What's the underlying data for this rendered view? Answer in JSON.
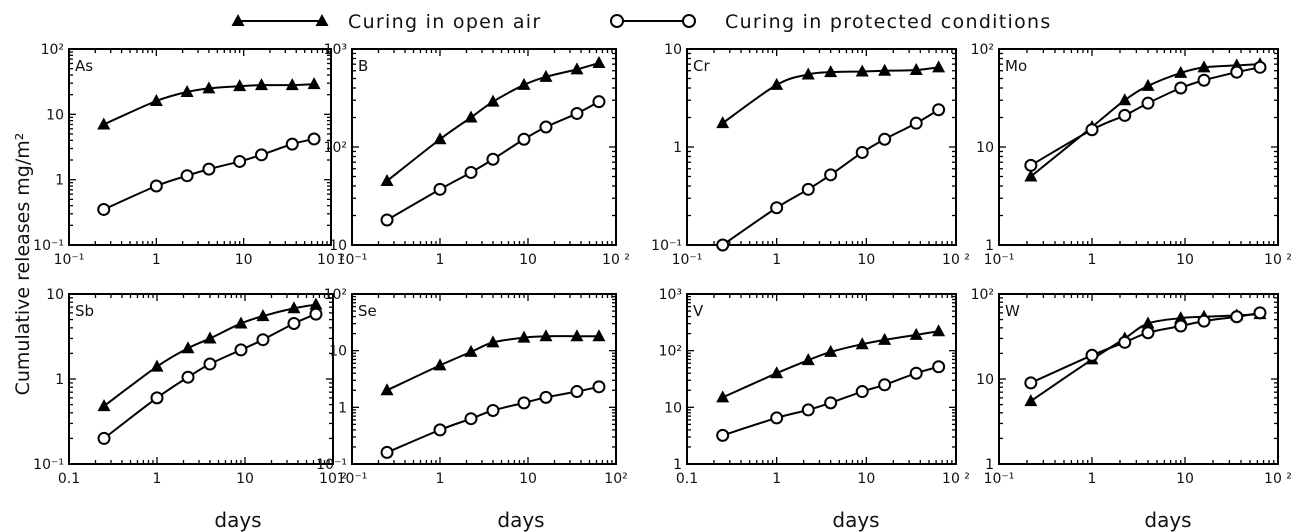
{
  "legend": {
    "open_air": "Curing in open air",
    "protected": "Curing in protected conditions"
  },
  "ylabel": "Cumulative releases mg/m²",
  "xlabel": "days",
  "chart_data": [
    {
      "type": "line",
      "panel": "As",
      "xscale": "log",
      "yscale": "log",
      "xlim": [
        0.1,
        100
      ],
      "ylim": [
        0.1,
        100
      ],
      "xtick_labels": [
        "10⁻¹",
        "1",
        "10",
        "10 ²"
      ],
      "ytick_labels": [
        "10⁻¹",
        "1",
        "10",
        "10²"
      ],
      "x": [
        0.25,
        1,
        2.25,
        4,
        9,
        16,
        36,
        64
      ],
      "series": [
        {
          "name": "Curing in open air",
          "marker": "triangle",
          "values": [
            7,
            16,
            22,
            25,
            27,
            28,
            28,
            29
          ]
        },
        {
          "name": "Curing in protected conditions",
          "marker": "circle",
          "values": [
            0.35,
            0.8,
            1.15,
            1.45,
            1.9,
            2.4,
            3.5,
            4.2
          ]
        }
      ]
    },
    {
      "type": "line",
      "panel": "B",
      "xscale": "log",
      "yscale": "log",
      "xlim": [
        0.1,
        100
      ],
      "ylim": [
        10,
        1000
      ],
      "xtick_labels": [
        "10⁻¹",
        "1",
        "10",
        "10 ²"
      ],
      "ytick_labels": [
        "10",
        "10²",
        "10³"
      ],
      "x": [
        0.25,
        1,
        2.25,
        4,
        9,
        16,
        36,
        64
      ],
      "series": [
        {
          "name": "Curing in open air",
          "marker": "triangle",
          "values": [
            45,
            120,
            200,
            290,
            430,
            520,
            620,
            720
          ]
        },
        {
          "name": "Curing in protected conditions",
          "marker": "circle",
          "values": [
            18,
            37,
            55,
            75,
            120,
            160,
            220,
            290
          ]
        }
      ]
    },
    {
      "type": "line",
      "panel": "Cr",
      "xscale": "log",
      "yscale": "log",
      "xlim": [
        0.1,
        100
      ],
      "ylim": [
        0.1,
        10
      ],
      "xtick_labels": [
        "10⁻¹",
        "1",
        "10",
        "10 ²"
      ],
      "ytick_labels": [
        "10⁻¹",
        "1",
        "10"
      ],
      "x": [
        0.25,
        1,
        2.25,
        4,
        9,
        16,
        36,
        64
      ],
      "series": [
        {
          "name": "Curing in open air",
          "marker": "triangle",
          "values": [
            1.75,
            4.3,
            5.5,
            5.8,
            5.9,
            6.0,
            6.1,
            6.5
          ]
        },
        {
          "name": "Curing in protected conditions",
          "marker": "circle",
          "values": [
            0.1,
            0.24,
            0.37,
            0.52,
            0.88,
            1.2,
            1.75,
            2.4
          ]
        }
      ]
    },
    {
      "type": "line",
      "panel": "Mo",
      "xscale": "log",
      "yscale": "log",
      "xlim": [
        0.1,
        100
      ],
      "ylim": [
        1,
        100
      ],
      "xtick_labels": [
        "10⁻¹",
        "1",
        "10",
        "10 ²"
      ],
      "ytick_labels": [
        "1",
        "10",
        "10²"
      ],
      "x": [
        0.22,
        1,
        2.25,
        4,
        9,
        16,
        36,
        64
      ],
      "series": [
        {
          "name": "Curing in open air",
          "marker": "triangle",
          "values": [
            5,
            16,
            30,
            42,
            57,
            65,
            68,
            70
          ]
        },
        {
          "name": "Curing in protected conditions",
          "marker": "circle",
          "values": [
            6.5,
            15,
            21,
            28,
            40,
            48,
            58,
            65
          ]
        }
      ]
    },
    {
      "type": "line",
      "panel": "Sb",
      "xscale": "log",
      "yscale": "log",
      "xlim": [
        0.1,
        100
      ],
      "ylim": [
        0.1,
        10
      ],
      "xtick_labels": [
        "0.1",
        "1",
        "10",
        "10 ²"
      ],
      "ytick_labels": [
        "10⁻¹",
        "1",
        "10"
      ],
      "x": [
        0.25,
        1,
        2.25,
        4,
        9,
        16,
        36,
        64
      ],
      "series": [
        {
          "name": "Curing in open air",
          "marker": "triangle",
          "values": [
            0.48,
            1.4,
            2.3,
            3.0,
            4.5,
            5.5,
            6.8,
            7.5
          ]
        },
        {
          "name": "Curing in protected conditions",
          "marker": "circle",
          "values": [
            0.2,
            0.6,
            1.05,
            1.5,
            2.2,
            2.9,
            4.5,
            5.8
          ]
        }
      ]
    },
    {
      "type": "line",
      "panel": "Se",
      "xscale": "log",
      "yscale": "log",
      "xlim": [
        0.1,
        100
      ],
      "ylim": [
        0.1,
        100
      ],
      "xtick_labels": [
        "10⁻¹",
        "1",
        "10",
        "10²"
      ],
      "ytick_labels": [
        "10⁻¹",
        "1",
        "10",
        "10²"
      ],
      "x": [
        0.25,
        1,
        2.25,
        4,
        9,
        16,
        36,
        64
      ],
      "series": [
        {
          "name": "Curing in open air",
          "marker": "triangle",
          "values": [
            2,
            5.5,
            9.5,
            14,
            17,
            18,
            18,
            18
          ]
        },
        {
          "name": "Curing in protected conditions",
          "marker": "circle",
          "values": [
            0.16,
            0.4,
            0.63,
            0.88,
            1.2,
            1.5,
            1.9,
            2.3
          ]
        }
      ]
    },
    {
      "type": "line",
      "panel": "V",
      "xscale": "log",
      "yscale": "log",
      "xlim": [
        0.1,
        100
      ],
      "ylim": [
        1,
        1000
      ],
      "xtick_labels": [
        "0.1",
        "1",
        "10",
        "10 ²"
      ],
      "ytick_labels": [
        "1",
        "10",
        "10²",
        "10³"
      ],
      "x": [
        0.25,
        1,
        2.25,
        4,
        9,
        16,
        36,
        64
      ],
      "series": [
        {
          "name": "Curing in open air",
          "marker": "triangle",
          "values": [
            15,
            40,
            68,
            95,
            130,
            155,
            190,
            220
          ]
        },
        {
          "name": "Curing in protected conditions",
          "marker": "circle",
          "values": [
            3.2,
            6.5,
            9,
            12,
            19,
            25,
            40,
            52
          ]
        }
      ]
    },
    {
      "type": "line",
      "panel": "W",
      "xscale": "log",
      "yscale": "log",
      "xlim": [
        0.1,
        100
      ],
      "ylim": [
        1,
        100
      ],
      "xtick_labels": [
        "10⁻¹",
        "1",
        "10",
        "10 ²"
      ],
      "ytick_labels": [
        "1",
        "10",
        "10²"
      ],
      "x": [
        0.22,
        1,
        2.25,
        4,
        9,
        16,
        36,
        64
      ],
      "series": [
        {
          "name": "Curing in open air",
          "marker": "triangle",
          "values": [
            5.5,
            17,
            30,
            45,
            52,
            54,
            56,
            58
          ]
        },
        {
          "name": "Curing in protected conditions",
          "marker": "circle",
          "values": [
            9,
            19,
            27,
            35,
            42,
            48,
            54,
            60
          ]
        }
      ]
    }
  ]
}
